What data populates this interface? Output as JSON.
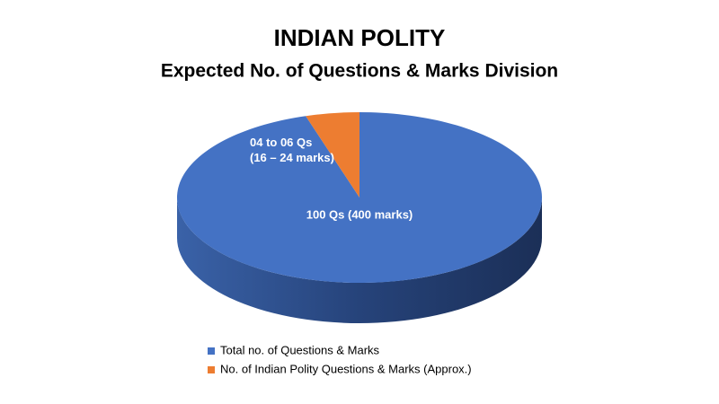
{
  "chart_data": {
    "type": "pie",
    "title": "INDIAN POLITY",
    "subtitle": "Expected No. of Questions & Marks Division",
    "categories": [
      "Total no. of Questions & Marks",
      "No. of Indian Polity Questions & Marks (Approx.)"
    ],
    "values": [
      100,
      5
    ],
    "value_labels": [
      "100 Qs (400 marks)",
      "04 to 06 Qs\n(16 – 24 marks)"
    ],
    "colors": [
      "#4472c4",
      "#ed7d31"
    ]
  }
}
